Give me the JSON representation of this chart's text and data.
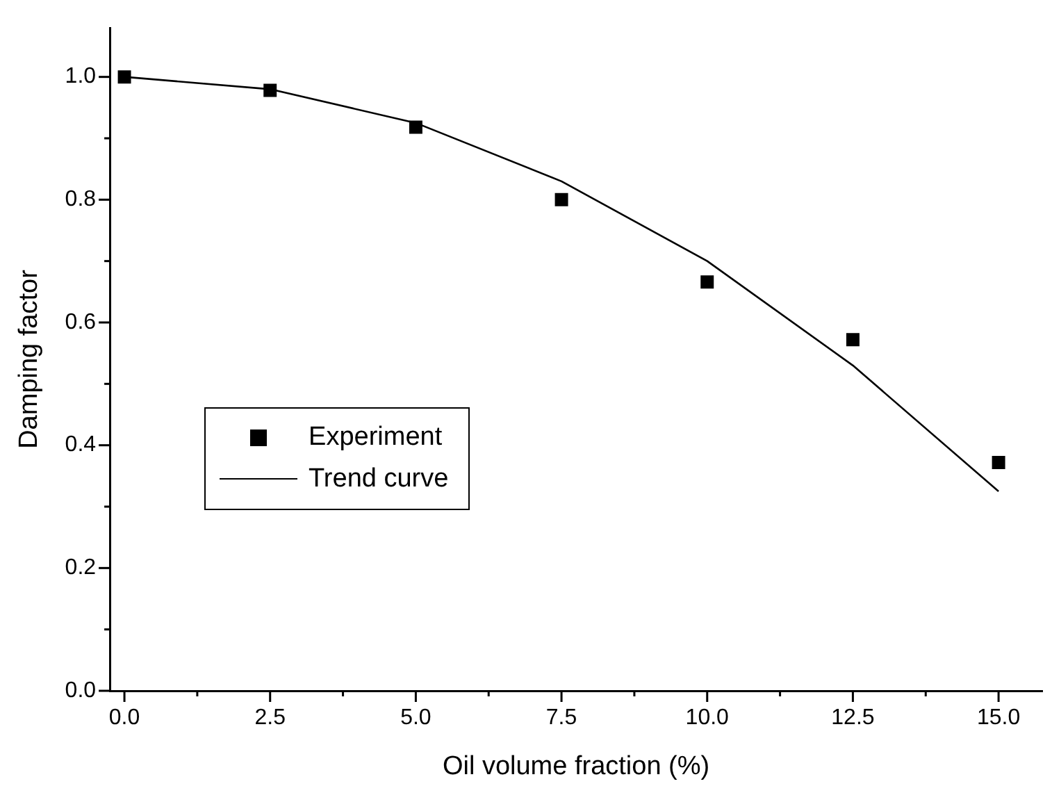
{
  "chart_data": {
    "type": "scatter",
    "xlabel": "Oil volume fraction (%)",
    "ylabel": "Damping factor",
    "xlim": [
      -0.25,
      15.75
    ],
    "ylim": [
      0,
      1.08
    ],
    "xticks": [
      {
        "value": 0,
        "label": "0.0"
      },
      {
        "value": 1.25,
        "label": null
      },
      {
        "value": 2.5,
        "label": "2.5"
      },
      {
        "value": 3.75,
        "label": null
      },
      {
        "value": 5,
        "label": "5.0"
      },
      {
        "value": 6.25,
        "label": null
      },
      {
        "value": 7.5,
        "label": "7.5"
      },
      {
        "value": 8.75,
        "label": null
      },
      {
        "value": 10,
        "label": "10.0"
      },
      {
        "value": 11.25,
        "label": null
      },
      {
        "value": 12.5,
        "label": "12.5"
      },
      {
        "value": 13.75,
        "label": null
      },
      {
        "value": 15,
        "label": "15.0"
      }
    ],
    "yticks": [
      {
        "value": 0,
        "label": "0.0"
      },
      {
        "value": 0.1,
        "label": null
      },
      {
        "value": 0.2,
        "label": "0.2"
      },
      {
        "value": 0.3,
        "label": null
      },
      {
        "value": 0.4,
        "label": "0.4"
      },
      {
        "value": 0.5,
        "label": null
      },
      {
        "value": 0.6,
        "label": "0.6"
      },
      {
        "value": 0.7,
        "label": null
      },
      {
        "value": 0.8,
        "label": "0.8"
      },
      {
        "value": 0.9,
        "label": null
      },
      {
        "value": 1,
        "label": "1.0"
      }
    ],
    "grid": false,
    "legend": "bottom left",
    "series": [
      {
        "name": "Experiment",
        "marker": "square",
        "color": "#000000",
        "x": [
          0,
          2.5,
          5,
          7.5,
          10,
          12.5,
          15
        ],
        "values": [
          1.0,
          0.978,
          0.918,
          0.8,
          0.666,
          0.572,
          0.372
        ]
      },
      {
        "name": "Trend curve",
        "type": "line",
        "marker": "none",
        "line_style": "solid",
        "color": "#000000",
        "x": [
          0,
          2.5,
          5,
          7.5,
          10,
          12.5,
          15
        ],
        "values": [
          1.0,
          0.98,
          0.925,
          0.83,
          0.7,
          0.53,
          0.325
        ]
      }
    ]
  }
}
